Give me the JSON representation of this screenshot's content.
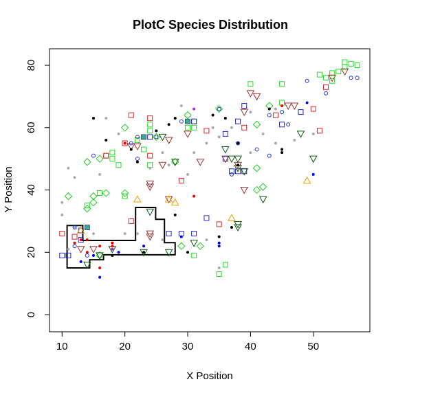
{
  "chart_data": {
    "type": "scatter",
    "title": "PlotC Species Distribution",
    "x_label": "X Position",
    "y_label": "Y Position",
    "xlim": [
      8,
      59
    ],
    "ylim": [
      -5.5,
      85.3
    ],
    "xticks": [
      10,
      20,
      30,
      40,
      50
    ],
    "yticks": [
      0,
      20,
      40,
      60,
      80
    ],
    "series": [
      {
        "color": "#22dd22",
        "shape": "square",
        "x": [
          55,
          55,
          56,
          57,
          54,
          53,
          52,
          51,
          53,
          45,
          40,
          45,
          31,
          30,
          31,
          24,
          24,
          22,
          23,
          24,
          19,
          18,
          18,
          17,
          16,
          14,
          31,
          36,
          35,
          20
        ],
        "y": [
          81,
          79.5,
          80.5,
          80,
          78,
          77.5,
          76,
          77,
          75,
          74,
          74,
          68,
          62,
          60,
          60,
          61,
          59,
          56,
          53,
          48,
          48,
          52,
          50,
          51,
          39,
          35,
          19,
          16,
          13,
          38
        ]
      },
      {
        "color": "#dd2222",
        "shape": "square",
        "x": [
          21,
          24,
          33,
          39,
          50,
          51,
          52,
          44,
          29,
          35,
          24,
          17,
          20,
          12,
          10,
          21
        ],
        "y": [
          64,
          63,
          59,
          60,
          66,
          59,
          73,
          64,
          43,
          29,
          51,
          51,
          55,
          25,
          26,
          30
        ]
      },
      {
        "color": "#2222cc",
        "shape": "square",
        "x": [
          31,
          36,
          38,
          39,
          45,
          48,
          36,
          37,
          38,
          39,
          33,
          29,
          31,
          27,
          13,
          10,
          11,
          24,
          13
        ],
        "y": [
          62,
          58,
          62,
          67,
          61,
          65,
          50,
          46,
          46,
          46,
          31,
          26,
          26,
          26,
          27,
          19,
          19,
          57,
          24
        ]
      },
      {
        "color": "#22cc22",
        "shape": "diamond",
        "x": [
          11,
          14,
          15,
          15,
          14,
          16,
          17,
          20,
          20,
          25,
          28,
          30,
          35,
          41,
          41,
          41,
          42,
          43,
          29,
          32,
          16
        ],
        "y": [
          38,
          34,
          36,
          38,
          49,
          50,
          39,
          39,
          60,
          57,
          49,
          64,
          66,
          61,
          47,
          40,
          41,
          67,
          22,
          22,
          19
        ]
      },
      {
        "color": "#993333",
        "shape": "down",
        "x": [
          40,
          41,
          39,
          46,
          47,
          36,
          38,
          39,
          27,
          26,
          24,
          24,
          27,
          24,
          21,
          32,
          30,
          13,
          15,
          22,
          24,
          55,
          53
        ],
        "y": [
          71,
          70,
          65,
          67,
          67,
          50,
          48,
          40,
          56,
          48,
          42,
          41,
          37,
          26,
          54,
          49,
          58,
          21,
          21,
          54,
          25,
          78,
          76
        ]
      },
      {
        "color": "#115511",
        "shape": "down",
        "x": [
          36,
          37,
          38,
          38,
          39,
          38,
          38,
          42,
          48,
          50,
          31,
          27,
          24,
          18,
          14,
          16,
          23,
          28,
          26
        ],
        "y": [
          53,
          50,
          50,
          47,
          46,
          29,
          28,
          37,
          58,
          50,
          23,
          20,
          33,
          21,
          16,
          19,
          20,
          49,
          57
        ]
      },
      {
        "color": "#e8a000",
        "shape": "up",
        "x": [
          27,
          28,
          22,
          37,
          49,
          13
        ],
        "y": [
          37,
          36,
          37,
          31,
          43,
          27
        ]
      },
      {
        "color": "#2233cc",
        "shape": "circle",
        "x": [
          57,
          56,
          52,
          49,
          45,
          43,
          46,
          43,
          41,
          38,
          37,
          35,
          29,
          22,
          21,
          22,
          12,
          12,
          14,
          15,
          25
        ],
        "y": [
          76,
          76,
          71,
          75,
          65,
          64,
          61,
          51,
          53,
          55,
          45,
          66,
          62,
          57,
          55,
          50,
          28,
          22,
          19,
          51,
          57
        ]
      },
      {
        "color": "#aaaaaa",
        "shape": "dot",
        "x": [
          10,
          10,
          11,
          12,
          16,
          17,
          19,
          24,
          26,
          30,
          31,
          33,
          34,
          35,
          37,
          40,
          42,
          44,
          47,
          50,
          29,
          20,
          22,
          26,
          33,
          35,
          40,
          44,
          12,
          11,
          15,
          27
        ],
        "y": [
          36,
          32,
          47,
          44,
          45,
          63,
          58,
          47,
          52,
          45,
          52,
          55,
          60,
          57,
          60,
          65,
          58,
          55,
          56,
          58,
          67,
          26,
          26,
          24,
          24,
          15,
          52,
          66,
          28,
          21,
          26,
          48
        ]
      },
      {
        "color": "#000000",
        "shape": "dot",
        "x": [
          15,
          17,
          21,
          22,
          25,
          27,
          28,
          34,
          36,
          38,
          43,
          45,
          45,
          37,
          38,
          35,
          30,
          28,
          23,
          18
        ],
        "y": [
          63,
          56,
          53,
          49,
          59,
          61,
          63,
          64,
          63,
          55,
          66,
          52,
          53,
          28,
          48,
          25,
          20,
          32,
          20,
          19
        ]
      },
      {
        "color": "#ee0000",
        "shape": "dot",
        "x": [
          20,
          12,
          13,
          14,
          16,
          14,
          18,
          31,
          45,
          18,
          16
        ],
        "y": [
          55,
          23,
          24,
          24,
          22,
          20,
          23,
          38,
          67,
          22,
          15
        ]
      },
      {
        "color": "#0000dd",
        "shape": "dot",
        "x": [
          49,
          50,
          35,
          35,
          29,
          23,
          16,
          15,
          13,
          19
        ],
        "y": [
          68,
          45,
          22,
          23,
          25,
          22,
          12,
          19,
          17,
          20
        ]
      },
      {
        "color": "#9933cc",
        "shape": "dot",
        "x": [
          31,
          18
        ],
        "y": [
          66,
          21
        ]
      },
      {
        "color": "#33aaaa",
        "shape": "filled-square",
        "x": [
          23,
          30,
          14
        ],
        "y": [
          57,
          62,
          28
        ]
      }
    ],
    "polygon": {
      "x": [
        10.8,
        13.3,
        13.3,
        21.7,
        21.7,
        24.9,
        24.9,
        26.3,
        26.3,
        28,
        28,
        16.6,
        16.6,
        14.4,
        14.4,
        10.8
      ],
      "y": [
        28.6,
        28.6,
        23.8,
        23.8,
        34.4,
        34.4,
        30.6,
        30.6,
        23.1,
        23.1,
        19.2,
        19.2,
        17.6,
        17.6,
        15,
        15
      ]
    }
  }
}
